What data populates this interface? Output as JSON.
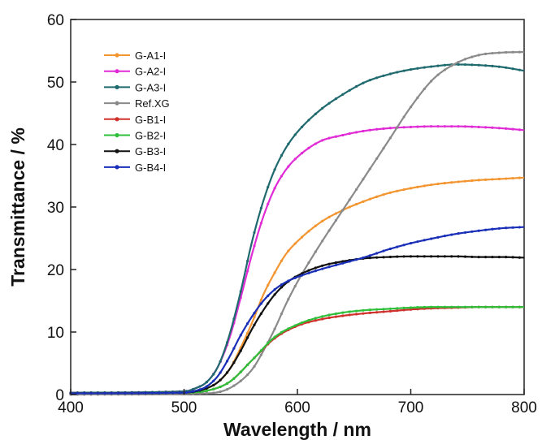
{
  "chart_data": {
    "type": "line",
    "title": "",
    "xlabel": "Wavelength / nm",
    "ylabel": "Transmittance / %",
    "xlim": [
      400,
      800
    ],
    "ylim": [
      0,
      60
    ],
    "xticks": [
      400,
      500,
      600,
      700,
      800
    ],
    "yticks": [
      0,
      10,
      20,
      30,
      40,
      50,
      60
    ],
    "grid": false,
    "legend": "top-left",
    "series": [
      {
        "name": "G-A1-I",
        "color": "#f39530",
        "x": [
          400,
          500,
          510,
          520,
          530,
          540,
          550,
          560,
          570,
          580,
          590,
          600,
          620,
          640,
          660,
          680,
          700,
          720,
          740,
          760,
          780,
          800
        ],
        "y": [
          0.3,
          0.4,
          0.6,
          1.0,
          2.0,
          4.0,
          7.5,
          11.5,
          16.0,
          19.5,
          22.5,
          24.5,
          27.5,
          29.5,
          31.0,
          32.2,
          33.0,
          33.6,
          34.0,
          34.3,
          34.5,
          34.7
        ]
      },
      {
        "name": "G-A2-I",
        "color": "#e02bd6",
        "x": [
          400,
          500,
          510,
          520,
          530,
          540,
          550,
          560,
          570,
          580,
          590,
          600,
          620,
          640,
          660,
          680,
          700,
          720,
          740,
          760,
          780,
          800
        ],
        "y": [
          0.3,
          0.5,
          1.0,
          2.0,
          4.5,
          9.0,
          15.5,
          22.5,
          28.5,
          33.0,
          36.0,
          38.0,
          40.5,
          41.5,
          42.2,
          42.6,
          42.8,
          42.9,
          42.9,
          42.8,
          42.6,
          42.3
        ]
      },
      {
        "name": "G-A3-I",
        "color": "#1f6a6e",
        "x": [
          400,
          500,
          510,
          520,
          530,
          540,
          550,
          560,
          570,
          580,
          590,
          600,
          620,
          640,
          660,
          680,
          700,
          720,
          740,
          760,
          780,
          800
        ],
        "y": [
          0.3,
          0.5,
          1.0,
          2.0,
          4.5,
          9.5,
          16.5,
          24.5,
          31.0,
          36.0,
          39.5,
          42.0,
          45.5,
          48.0,
          50.0,
          51.2,
          52.0,
          52.5,
          52.8,
          52.7,
          52.4,
          51.8
        ]
      },
      {
        "name": "Ref.XG",
        "color": "#8a8a8a",
        "x": [
          400,
          520,
          540,
          560,
          570,
          580,
          590,
          600,
          620,
          640,
          660,
          680,
          700,
          720,
          740,
          760,
          780,
          800
        ],
        "y": [
          0.0,
          0.2,
          1.0,
          4.0,
          7.0,
          10.5,
          14.5,
          18.0,
          24.0,
          29.5,
          35.0,
          40.5,
          46.0,
          50.5,
          53.0,
          54.3,
          54.7,
          54.8
        ]
      },
      {
        "name": "G-B1-I",
        "color": "#d0312d",
        "x": [
          400,
          500,
          520,
          540,
          560,
          580,
          600,
          620,
          640,
          660,
          680,
          700,
          720,
          740,
          760,
          780,
          800
        ],
        "y": [
          0.2,
          0.3,
          0.6,
          2.0,
          5.5,
          9.0,
          11.0,
          12.0,
          12.6,
          13.0,
          13.3,
          13.6,
          13.8,
          13.9,
          14.0,
          14.0,
          14.0
        ]
      },
      {
        "name": "G-B2-I",
        "color": "#2fbf3a",
        "x": [
          400,
          500,
          520,
          540,
          560,
          580,
          600,
          620,
          640,
          660,
          680,
          700,
          720,
          740,
          760,
          780,
          800
        ],
        "y": [
          0.2,
          0.3,
          0.6,
          2.0,
          5.5,
          9.2,
          11.2,
          12.4,
          13.1,
          13.5,
          13.7,
          13.9,
          14.0,
          14.0,
          14.0,
          14.0,
          14.0
        ]
      },
      {
        "name": "G-B3-I",
        "color": "#111111",
        "x": [
          400,
          500,
          510,
          520,
          530,
          540,
          550,
          560,
          570,
          580,
          590,
          600,
          620,
          640,
          660,
          680,
          700,
          720,
          740,
          760,
          780,
          800
        ],
        "y": [
          0.2,
          0.3,
          0.5,
          1.0,
          2.0,
          4.0,
          7.0,
          10.5,
          13.5,
          16.0,
          17.8,
          19.0,
          20.5,
          21.3,
          21.8,
          22.0,
          22.1,
          22.1,
          22.1,
          22.0,
          22.0,
          21.9
        ]
      },
      {
        "name": "G-B4-I",
        "color": "#1a2fb8",
        "x": [
          400,
          500,
          510,
          520,
          530,
          540,
          550,
          560,
          570,
          580,
          590,
          600,
          620,
          640,
          660,
          680,
          700,
          720,
          740,
          760,
          780,
          800
        ],
        "y": [
          0.2,
          0.3,
          0.6,
          1.3,
          3.0,
          6.0,
          9.5,
          12.5,
          15.0,
          16.8,
          18.0,
          18.8,
          20.0,
          21.0,
          22.0,
          23.2,
          24.2,
          25.0,
          25.7,
          26.2,
          26.6,
          26.8
        ]
      }
    ]
  }
}
